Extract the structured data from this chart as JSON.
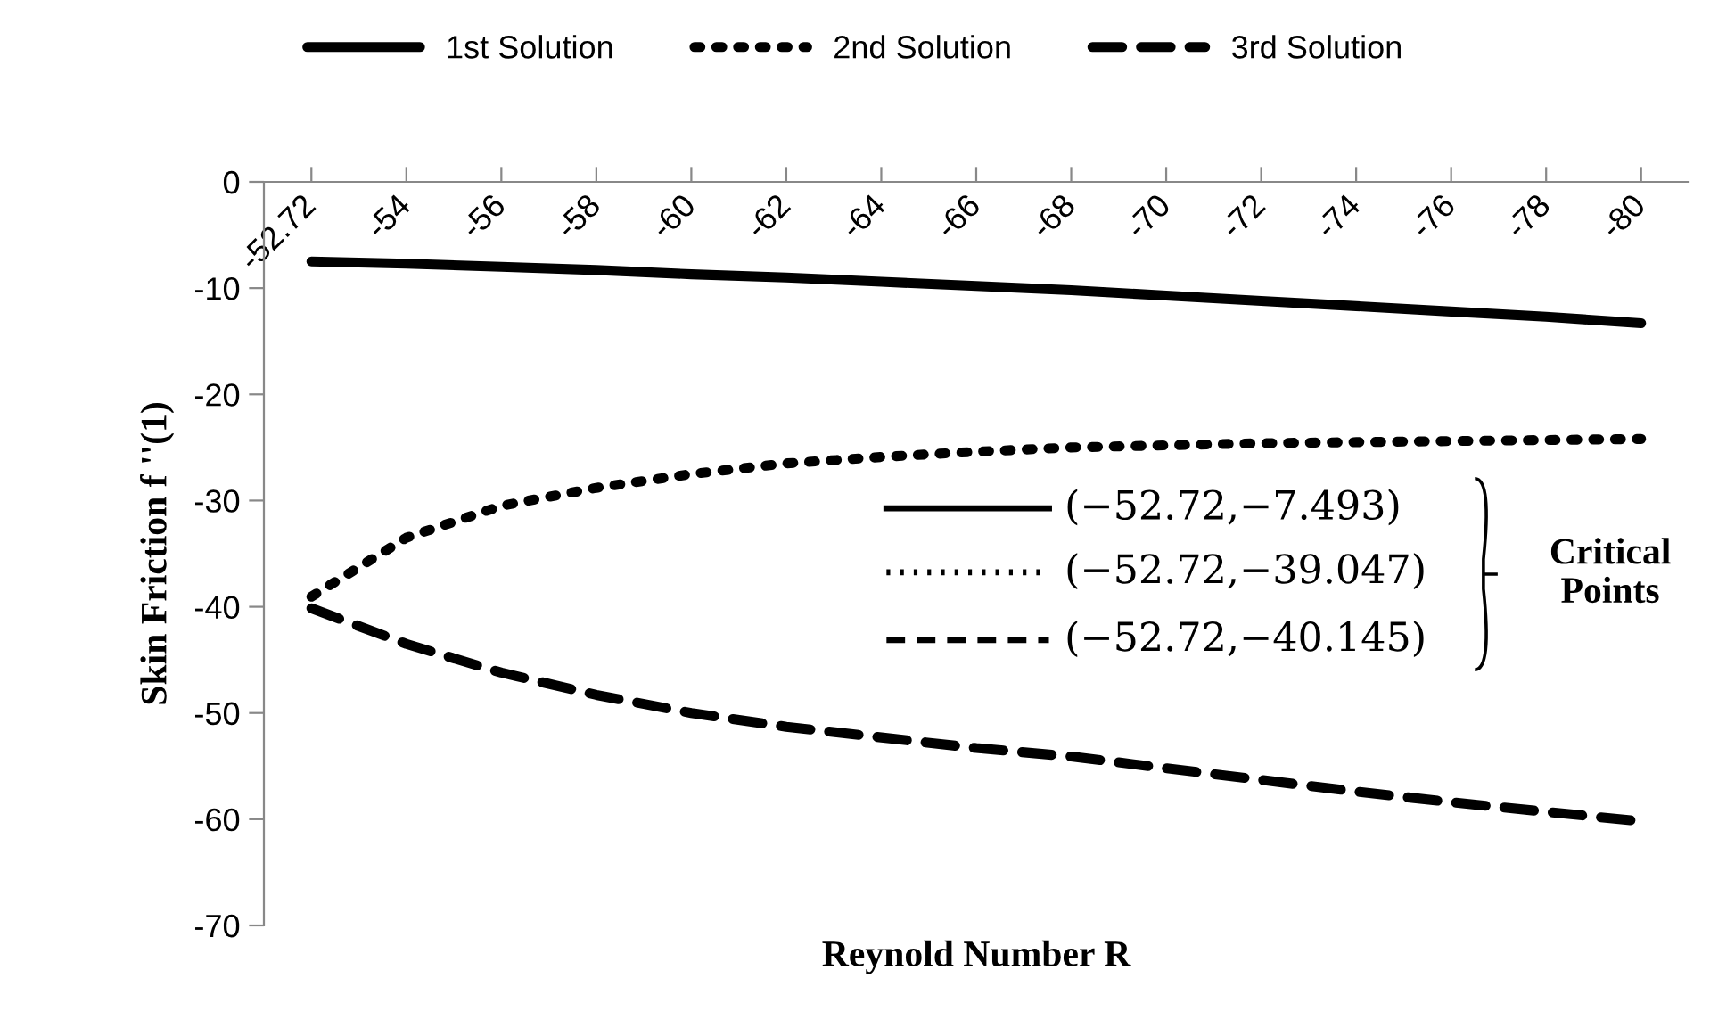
{
  "chart_data": {
    "type": "line",
    "xlabel": "Reynold Number R",
    "ylabel": "Skin Friction f ''(1)",
    "categories": [
      "-52.72",
      "-54",
      "-56",
      "-58",
      "-60",
      "-62",
      "-64",
      "-66",
      "-68",
      "-70",
      "-72",
      "-74",
      "-76",
      "-78",
      "-80"
    ],
    "series": [
      {
        "name": "1st Solution",
        "color": "#000000",
        "line_style": "solid",
        "values": [
          -7.493,
          -7.7,
          -8.0,
          -8.3,
          -8.7,
          -9.0,
          -9.4,
          -9.8,
          -10.2,
          -10.7,
          -11.2,
          -11.7,
          -12.2,
          -12.7,
          -13.3
        ]
      },
      {
        "name": "2nd Solution",
        "color": "#000000",
        "line_style": "dotted",
        "values": [
          -39.047,
          -33.5,
          -30.5,
          -28.8,
          -27.5,
          -26.5,
          -25.9,
          -25.4,
          -25.0,
          -24.8,
          -24.6,
          -24.5,
          -24.4,
          -24.3,
          -24.2
        ]
      },
      {
        "name": "3rd Solution",
        "color": "#000000",
        "line_style": "dashed",
        "values": [
          -40.145,
          -43.5,
          -46.2,
          -48.3,
          -50.0,
          -51.3,
          -52.3,
          -53.3,
          -54.1,
          -55.2,
          -56.3,
          -57.4,
          -58.4,
          -59.3,
          -60.2
        ]
      }
    ],
    "ylim": [
      -70,
      0
    ],
    "yticks": [
      0,
      -10,
      -20,
      -30,
      -40,
      -50,
      -60,
      -70
    ],
    "grid": false,
    "legend": "top",
    "annotations": [
      "(−52.72,−7.493)",
      "(−52.72,−39.047)",
      "(−52.72,−40.145)",
      "Critical Points"
    ]
  }
}
